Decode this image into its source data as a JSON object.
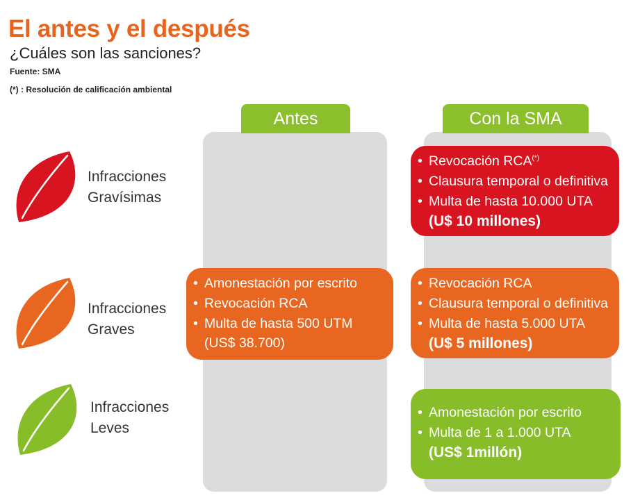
{
  "title": "El antes y el después",
  "subtitle": "¿Cuáles son las sanciones?",
  "source": "Fuente: SMA",
  "footnote": "(*) : Resolución de calificación ambiental",
  "columns": {
    "before": "Antes",
    "after": "Con la SMA"
  },
  "rows": {
    "gravisimas": {
      "label_line1": "Infracciones",
      "label_line2": "Gravísimas",
      "after": {
        "items": [
          "Revocación RCA",
          "Clausura temporal o definitiva",
          "Multa de hasta 10.000 UTA"
        ],
        "footnote_mark": "(*)",
        "amount": "(U$ 10 millones)"
      }
    },
    "graves": {
      "label_line1": "Infracciones",
      "label_line2": "Graves",
      "before": {
        "items": [
          "Amonestación por escrito",
          "Revocación RCA",
          "Multa de hasta 500 UTM"
        ],
        "amount": "(US$ 38.700)"
      },
      "after": {
        "items": [
          "Revocación RCA",
          "Clausura temporal o definitiva",
          "Multa de hasta 5.000 UTA"
        ],
        "amount": "(U$ 5 millones)"
      }
    },
    "leves": {
      "label_line1": "Infracciones",
      "label_line2": "Leves",
      "after": {
        "items": [
          "Amonestación por escrito",
          "Multa de 1 a 1.000 UTA"
        ],
        "amount": "(US$ 1millón)"
      }
    }
  },
  "colors": {
    "title": "#e8641c",
    "header_green": "#8bbf2c",
    "column_bg": "#dcdcde",
    "severity_red": "#d7141f",
    "severity_orange": "#e8661f",
    "severity_green": "#86bd28"
  }
}
